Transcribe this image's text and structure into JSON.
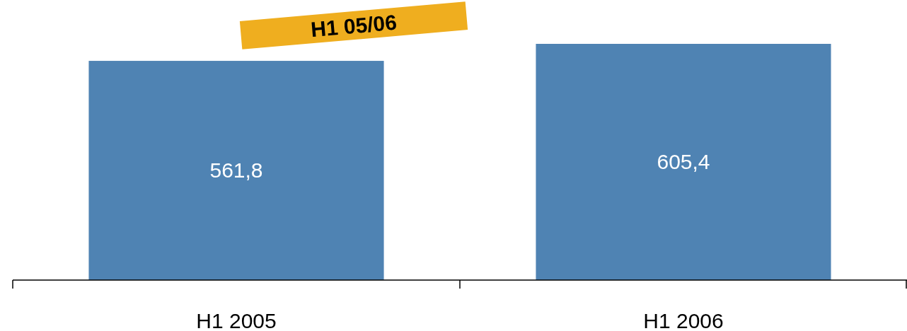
{
  "chart_data": {
    "type": "bar",
    "categories": [
      "H1 2005",
      "H1 2006"
    ],
    "series": [
      {
        "color": "#4f83b3",
        "values": [
          561.8,
          605.4
        ],
        "value_labels": [
          "561,8",
          "605,4"
        ]
      }
    ],
    "annotations": [
      "H1 05/06"
    ]
  }
}
